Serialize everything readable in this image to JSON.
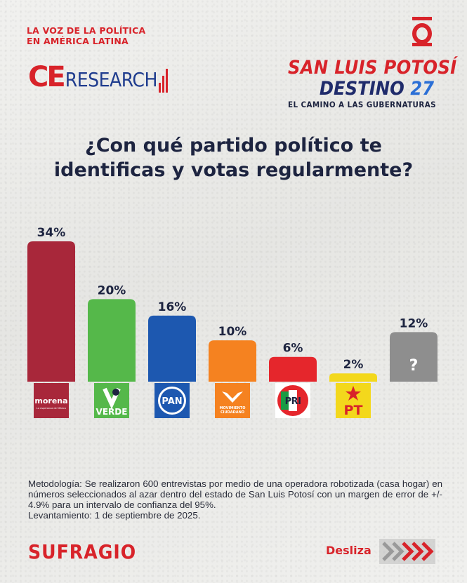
{
  "header": {
    "tagline_line1": "LA VOZ DE LA POLÍTICA",
    "tagline_line2": "EN AMÉRICA LATINA",
    "ce_logo_ce": "CE",
    "ce_logo_research": "RESEARCH",
    "brand_letter": "O",
    "campaign_line1": "SAN LUIS POTOSÍ",
    "campaign_line2_word": "DESTINO ",
    "campaign_line2_num": "27",
    "campaign_line3": "EL CAMINO A LAS GUBERNATURAS"
  },
  "question": {
    "line1": "¿Con qué partido político te",
    "line2": "identificas y votas regularmente?"
  },
  "chart_data": {
    "type": "bar",
    "title": "¿Con qué partido político te identificas y votas regularmente?",
    "categories": [
      "morena",
      "VERDE",
      "PAN",
      "MOVIMIENTO CIUDADANO",
      "PRI",
      "PT",
      "?"
    ],
    "values": [
      34,
      20,
      16,
      10,
      6,
      2,
      12
    ],
    "value_labels": [
      "34%",
      "20%",
      "16%",
      "10%",
      "6%",
      "2%",
      "12%"
    ],
    "unit": "%",
    "colors": [
      "#a8273a",
      "#55b84a",
      "#1d58b0",
      "#f58220",
      "#e5262c",
      "#f3d81c",
      "#8e8e8e"
    ],
    "logo_texts": {
      "morena_name": "morena",
      "morena_sub": "La esperanza de México",
      "verde": "VERDE",
      "pan": "PAN",
      "mc_line1": "MOVIMIENTO",
      "mc_line2": "CIUDADANO",
      "pri": "PRI",
      "pt": "PT"
    },
    "unknown_mark": "?",
    "ylim": [
      0,
      34
    ],
    "grid": false
  },
  "footer": {
    "methodology_line1": "Metodología: Se realizaron 600 entrevistas por medio de una operadora robotizada (casa hogar) en números seleccionados al azar dentro del estado de San Luis Potosí con un margen de error de +/- 4.9% para un intervalo de confianza del 95%.",
    "methodology_line2": "Levantamiento: 1 de septiembre de 2025.",
    "brand": "SUFRAGIO",
    "swipe_label": "Desliza"
  },
  "colors": {
    "accent_red": "#d8232a",
    "navy": "#1d2440",
    "blue": "#1f3c8e"
  }
}
